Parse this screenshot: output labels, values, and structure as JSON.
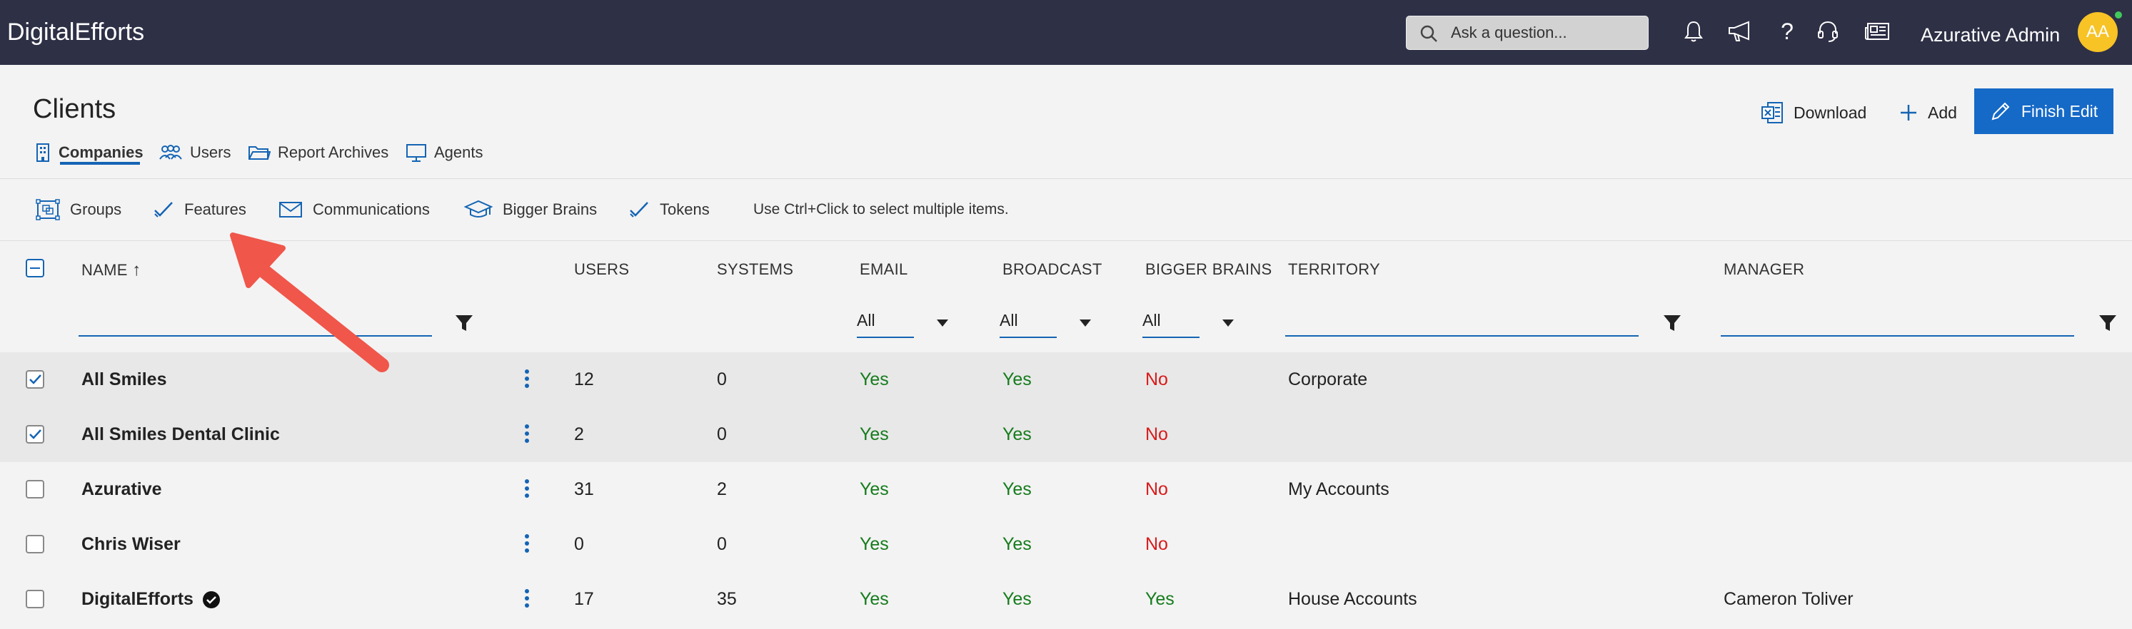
{
  "app": {
    "brand": "DigitalEfforts"
  },
  "topbar": {
    "search_placeholder": "Ask a question...",
    "icons": [
      "bell-icon",
      "megaphone-icon",
      "help-icon",
      "headset-icon",
      "news-icon"
    ],
    "user_name": "Azurative Admin",
    "avatar_initials": "AA"
  },
  "page": {
    "title": "Clients",
    "tabs": [
      {
        "label": "Companies",
        "icon": "building-icon",
        "active": true
      },
      {
        "label": "Users",
        "icon": "users-icon"
      },
      {
        "label": "Report Archives",
        "icon": "folder-icon"
      },
      {
        "label": "Agents",
        "icon": "monitor-icon"
      }
    ],
    "actions": {
      "download": "Download",
      "add": "Add",
      "finish_edit": "Finish Edit"
    }
  },
  "toolbar": {
    "items": [
      {
        "label": "Groups",
        "icon": "groups-icon"
      },
      {
        "label": "Features",
        "icon": "checkmark-icon"
      },
      {
        "label": "Communications",
        "icon": "mail-icon"
      },
      {
        "label": "Bigger Brains",
        "icon": "graduation-cap-icon"
      },
      {
        "label": "Tokens",
        "icon": "checkmark-icon"
      }
    ],
    "hint": "Use Ctrl+Click to select multiple items."
  },
  "table": {
    "columns": {
      "name": "NAME",
      "sort_arrow": "↑",
      "users": "USERS",
      "systems": "SYSTEMS",
      "email": "EMAIL",
      "broadcast": "BROADCAST",
      "bigger_brains": "BIGGER BRAINS",
      "territory": "TERRITORY",
      "manager": "MANAGER"
    },
    "filters": {
      "email": "All",
      "broadcast": "All",
      "bigger_brains": "All"
    },
    "rows": [
      {
        "name": "All Smiles",
        "users": "12",
        "systems": "0",
        "email": "Yes",
        "broadcast": "Yes",
        "bigger_brains": "No",
        "territory": "Corporate",
        "manager": "",
        "selected": true
      },
      {
        "name": "All Smiles Dental Clinic",
        "users": "2",
        "systems": "0",
        "email": "Yes",
        "broadcast": "Yes",
        "bigger_brains": "No",
        "territory": "",
        "manager": "",
        "selected": true
      },
      {
        "name": "Azurative",
        "users": "31",
        "systems": "2",
        "email": "Yes",
        "broadcast": "Yes",
        "bigger_brains": "No",
        "territory": "My Accounts",
        "manager": "",
        "selected": false
      },
      {
        "name": "Chris Wiser",
        "users": "0",
        "systems": "0",
        "email": "Yes",
        "broadcast": "Yes",
        "bigger_brains": "No",
        "territory": "",
        "manager": "",
        "selected": false
      },
      {
        "name": "DigitalEfforts",
        "users": "17",
        "systems": "35",
        "email": "Yes",
        "broadcast": "Yes",
        "bigger_brains": "Yes",
        "territory": "House Accounts",
        "manager": "Cameron Toliver",
        "selected": false,
        "verified": true
      }
    ]
  },
  "colors": {
    "topbar": "#2e3046",
    "accent": "#1569c7",
    "yes": "#157c1c",
    "no": "#d81b1b",
    "annotation_arrow": "#f0564a"
  }
}
